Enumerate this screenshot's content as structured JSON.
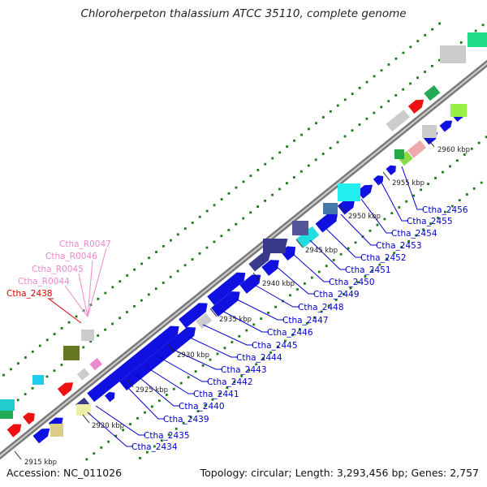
{
  "title": "Chloroherpeton thalassium ATCC 35110, complete genome",
  "footer": {
    "accession": "Accession: NC_011026",
    "topology": "Topology: circular; Length: 3,293,456 bp; Genes: 2,757"
  },
  "kbp_ticks": [
    "2915 kbp",
    "2920 kbp",
    "2925 kbp",
    "2930 kbp",
    "2935 kbp",
    "2940 kbp",
    "2945 kbp",
    "2950 kbp",
    "2955 kbp",
    "2960 kbp"
  ],
  "gene_labels": {
    "Cthа_2434": "Ctha_2434",
    "Ctha_2435": "Ctha_2435",
    "Ctha_2439": "Ctha_2439",
    "Ctha_2440": "Ctha_2440",
    "Ctha_2441": "Ctha_2441",
    "Ctha_2442": "Ctha_2442",
    "Ctha_2443": "Ctha_2443",
    "Ctha_2444": "Ctha_2444",
    "Ctha_2445": "Ctha_2445",
    "Ctha_2446": "Ctha_2446",
    "Ctha_2447": "Ctha_2447",
    "Ctha_2448": "Ctha_2448",
    "Ctha_2449": "Ctha_2449",
    "Ctha_2450": "Ctha_2450",
    "Ctha_2451": "Ctha_2451",
    "Ctha_2452": "Ctha_2452",
    "Ctha_2453": "Ctha_2453",
    "Ctha_2454": "Ctha_2454",
    "Ctha_2455": "Ctha_2455",
    "Ctha_2456": "Ctha_2456",
    "Ctha_2438": "Ctha_2438",
    "Ctha_R0044": "Ctha_R0044",
    "Ctha_R0045": "Ctha_R0045",
    "Ctha_R0046": "Ctha_R0046",
    "Ctha_R0047": "Ctha_R0047"
  },
  "colors": {
    "blue_cds": "#1010e0",
    "navy_cds": "#3a3a8a",
    "red_cds": "#ee1111",
    "trna_pink": "#ee88cc",
    "label_blue": "#0000cc",
    "label_red": "#dd0000",
    "label_pink": "#ee88cc",
    "backbone": "#888888",
    "gc_dots": "#1a7a1a"
  }
}
